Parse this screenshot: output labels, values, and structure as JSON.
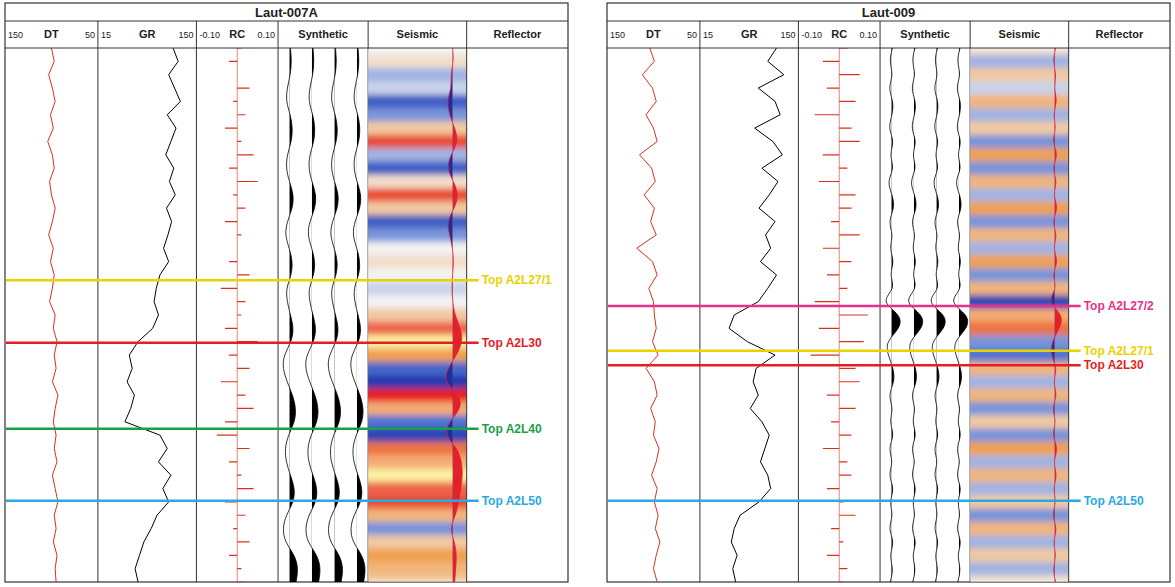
{
  "chart_data": [
    {
      "type": "well_log",
      "title": "Laut-007A",
      "ylim": [
        0,
        100
      ],
      "tick_labels": "x",
      "depth": [
        0,
        2.5,
        5,
        7.5,
        10,
        12.5,
        15,
        17.5,
        20,
        22.5,
        25,
        27.5,
        30,
        32.5,
        35,
        37.5,
        40,
        42.5,
        45,
        47.5,
        50,
        52.5,
        55,
        57.5,
        60,
        62.5,
        65,
        67.5,
        70,
        72.5,
        75,
        77.5,
        80,
        82.5,
        85,
        87.5,
        90,
        92.5,
        95,
        97.5,
        100
      ],
      "tracks": [
        {
          "name": "DT",
          "type": "line",
          "color": "#d7301f",
          "xlim": [
            150,
            50
          ],
          "xticks": [
            150,
            50
          ],
          "values": [
            100,
            97,
            103,
            99,
            96,
            101,
            98,
            104,
            99,
            97,
            102,
            100,
            96,
            99,
            103,
            98,
            101,
            97,
            99,
            102,
            96,
            98,
            94,
            97,
            95,
            99,
            93,
            96,
            98,
            95,
            97,
            94,
            99,
            96,
            93,
            97,
            95,
            98,
            94,
            96,
            95
          ]
        },
        {
          "name": "GR",
          "type": "line",
          "color": "#000000",
          "xlim": [
            15,
            150
          ],
          "xticks": [
            15,
            150
          ],
          "values": [
            118,
            125,
            112,
            120,
            128,
            110,
            122,
            115,
            108,
            119,
            113,
            121,
            109,
            116,
            111,
            105,
            112,
            100,
            95,
            92,
            98,
            90,
            70,
            58,
            62,
            55,
            65,
            60,
            52,
            100,
            110,
            98,
            115,
            104,
            112,
            96,
            88,
            78,
            72,
            66,
            70
          ]
        },
        {
          "name": "RC",
          "type": "bar",
          "color": "#d7301f",
          "xlim": [
            -0.1,
            0.1
          ],
          "xticks": [
            {
              "value": -0.1,
              "label": "-0.10"
            },
            {
              "value": 0.1,
              "label": "0.10"
            }
          ],
          "values": [
            0.01,
            -0.02,
            0,
            0.03,
            -0.01,
            0.02,
            -0.03,
            0.01,
            0.04,
            -0.02,
            0.05,
            -0.01,
            0.02,
            -0.03,
            0.01,
            0,
            -0.02,
            0.03,
            -0.04,
            0.02,
            0.01,
            -0.03,
            0.05,
            -0.02,
            0.03,
            -0.04,
            0.02,
            0.04,
            -0.03,
            -0.05,
            0.03,
            -0.02,
            0.01,
            0.04,
            -0.03,
            0.02,
            -0.01,
            0.03,
            -0.02,
            0.01,
            0.02
          ]
        },
        {
          "name": "Synthetic",
          "type": "wiggle",
          "color": "#000000",
          "values": [
            0.1,
            0.2,
            0.1,
            -0.2,
            -0.3,
            0.1,
            0.3,
            0.2,
            -0.2,
            -0.3,
            0,
            0.4,
            0.3,
            -0.2,
            -0.4,
            0,
            0.3,
            0.2,
            -0.3,
            -0.2,
            0.1,
            0.4,
            0.2,
            -0.5,
            -0.6,
            -0.2,
            0.3,
            0.6,
            0.5,
            -0.1,
            -0.4,
            -0.3,
            0.1,
            0.5,
            0.4,
            -0.3,
            -0.6,
            -0.4,
            0.5,
            0.8,
            0.6
          ]
        },
        {
          "name": "Seismic",
          "type": "heatmap",
          "values": [
            0,
            0.1,
            -0.2,
            -0.1,
            -0.6,
            -0.3,
            0.2,
            0.6,
            -0.2,
            -0.6,
            0.1,
            0.6,
            0.2,
            -0.6,
            -0.3,
            0,
            0.1,
            0,
            -0.1,
            0,
            0.2,
            0.8,
            1,
            0.4,
            -0.5,
            -0.9,
            0.7,
            0.9,
            -0.4,
            -0.8,
            0.5,
            0.9,
            1,
            0.8,
            0.6,
            0.3,
            -0.3,
            0.2,
            0.4,
            0.3,
            0.2
          ]
        },
        {
          "name": "Reflector",
          "type": "reflector"
        }
      ],
      "horizons": [
        {
          "name": "Top A2L27/1",
          "depth": 43.5,
          "color": "#e8d200"
        },
        {
          "name": "Top A2L30",
          "depth": 55.2,
          "color": "#e41e26"
        },
        {
          "name": "Top A2L40",
          "depth": 71.3,
          "color": "#1a9f48"
        },
        {
          "name": "Top A2L50",
          "depth": 84.8,
          "color": "#29a9e1"
        }
      ]
    },
    {
      "type": "well_log",
      "title": "Laut-009",
      "ylim": [
        0,
        100
      ],
      "tick_labels": "x",
      "depth": [
        0,
        2.5,
        5,
        7.5,
        10,
        12.5,
        15,
        17.5,
        20,
        22.5,
        25,
        27.5,
        30,
        32.5,
        35,
        37.5,
        40,
        42.5,
        45,
        47.5,
        50,
        52.5,
        55,
        57.5,
        60,
        62.5,
        65,
        67.5,
        70,
        72.5,
        75,
        77.5,
        80,
        82.5,
        85,
        87.5,
        90,
        92.5,
        95,
        97.5,
        100
      ],
      "tracks": [
        {
          "name": "DT",
          "type": "line",
          "color": "#d7301f",
          "xlim": [
            150,
            50
          ],
          "xticks": [
            150,
            50
          ],
          "values": [
            104,
            99,
            112,
            101,
            97,
            108,
            100,
            96,
            115,
            102,
            98,
            110,
            99,
            103,
            97,
            118,
            101,
            96,
            105,
            100,
            99,
            97,
            101,
            95,
            108,
            99,
            96,
            103,
            98,
            100,
            94,
            97,
            102,
            96,
            99,
            95,
            98,
            93,
            97,
            100,
            96
          ]
        },
        {
          "name": "GR",
          "type": "line",
          "color": "#000000",
          "xlim": [
            15,
            150
          ],
          "xticks": [
            15,
            150
          ],
          "values": [
            120,
            108,
            130,
            95,
            118,
            125,
            90,
            115,
            128,
            100,
            122,
            110,
            96,
            118,
            105,
            112,
            98,
            120,
            108,
            95,
            62,
            55,
            80,
            118,
            92,
            88,
            95,
            84,
            100,
            110,
            104,
            98,
            108,
            112,
            96,
            70,
            62,
            58,
            66,
            60,
            64
          ]
        },
        {
          "name": "RC",
          "type": "bar",
          "color": "#d7301f",
          "xlim": [
            -0.1,
            0.1
          ],
          "xticks": [
            {
              "value": -0.1,
              "label": "-0.10"
            },
            {
              "value": 0.1,
              "label": "0.10"
            }
          ],
          "values": [
            0.02,
            -0.04,
            0.05,
            -0.03,
            0.04,
            -0.06,
            0.03,
            0.05,
            -0.04,
            0.02,
            -0.05,
            0.04,
            0.03,
            -0.02,
            0.05,
            -0.04,
            0.03,
            -0.03,
            0.02,
            -0.06,
            0.07,
            -0.05,
            0.06,
            -0.07,
            0.04,
            0.05,
            -0.03,
            0.04,
            -0.02,
            0.03,
            -0.04,
            0.02,
            0.03,
            -0.03,
            0.01,
            0.04,
            -0.02,
            0.01,
            -0.03,
            0.02,
            0.01
          ]
        },
        {
          "name": "Synthetic",
          "type": "wiggle",
          "color": "#000000",
          "values": [
            0.1,
            -0.2,
            0.2,
            -0.3,
            0.2,
            0.1,
            -0.3,
            0.3,
            -0.2,
            0.3,
            -0.4,
            0.1,
            0.3,
            -0.3,
            0.2,
            -0.2,
            0.3,
            -0.2,
            0.4,
            -1,
            0.9,
            0.8,
            -0.5,
            -0.3,
            0.2,
            0.3,
            -0.3,
            0.2,
            -0.2,
            0.3,
            -0.3,
            0.2,
            -0.3,
            0.3,
            -0.2,
            0.2,
            -0.3,
            0.3,
            -0.2,
            0.2,
            -0.1
          ]
        },
        {
          "name": "Seismic",
          "type": "heatmap",
          "values": [
            0.1,
            -0.2,
            0.2,
            -0.1,
            0.3,
            -0.2,
            0.2,
            -0.3,
            0.4,
            -0.3,
            0.3,
            -0.2,
            0.4,
            -0.3,
            0.3,
            -0.2,
            0.4,
            -0.3,
            0.3,
            -0.8,
            0.9,
            0.5,
            -0.3,
            -0.4,
            0.3,
            -0.2,
            0.3,
            -0.3,
            0.2,
            -0.3,
            0.4,
            -0.2,
            0.3,
            -0.2,
            0.2,
            -0.3,
            0.3,
            -0.2,
            0.2,
            -0.2,
            0.1
          ]
        },
        {
          "name": "Reflector",
          "type": "reflector"
        }
      ],
      "horizons": [
        {
          "name": "Top A2L27/2",
          "depth": 48.3,
          "color": "#e6308a"
        },
        {
          "name": "Top A2L27/1",
          "depth": 56.7,
          "color": "#e8d200"
        },
        {
          "name": "Top A2L30",
          "depth": 59.4,
          "color": "#e41e26"
        },
        {
          "name": "Top A2L50",
          "depth": 84.8,
          "color": "#29a9e1"
        }
      ]
    }
  ]
}
